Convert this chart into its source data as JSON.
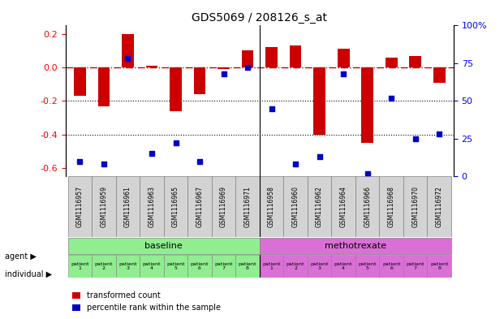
{
  "title": "GDS5069 / 208126_s_at",
  "samples": [
    "GSM1116957",
    "GSM1116959",
    "GSM1116961",
    "GSM1116963",
    "GSM1116965",
    "GSM1116967",
    "GSM1116969",
    "GSM1116971",
    "GSM1116958",
    "GSM1116960",
    "GSM1116962",
    "GSM1116964",
    "GSM1116966",
    "GSM1116968",
    "GSM1116970",
    "GSM1116972"
  ],
  "bar_values": [
    -0.17,
    -0.23,
    0.2,
    0.01,
    -0.26,
    -0.16,
    -0.01,
    0.1,
    0.12,
    0.13,
    -0.4,
    0.11,
    -0.45,
    0.06,
    0.07,
    -0.09
  ],
  "dot_values": [
    10,
    8,
    78,
    15,
    22,
    10,
    68,
    72,
    45,
    8,
    13,
    68,
    2,
    52,
    25,
    28
  ],
  "ylim_left": [
    -0.65,
    0.25
  ],
  "ylim_right": [
    0,
    100
  ],
  "yticks_left": [
    -0.6,
    -0.4,
    -0.2,
    0.0,
    0.2
  ],
  "yticks_right": [
    0,
    25,
    50,
    75,
    100
  ],
  "bar_color": "#CC0000",
  "dot_color": "#0000CC",
  "hline_y": 0.0,
  "hline_color": "#CC0000",
  "dotted_lines": [
    -0.2,
    -0.4
  ],
  "baseline_label": "baseline",
  "methotrexate_label": "methotrexate",
  "baseline_color": "#90EE90",
  "methotrexate_color": "#DA70D6",
  "individual_color": "#DDA0DD",
  "agent_label": "agent",
  "individual_label": "individual",
  "patient_labels": [
    "patient\n1",
    "patient\n2",
    "patient\n3",
    "patient\n4",
    "patient\n5",
    "patient\n6",
    "patient\n7",
    "patient\n8",
    "patient\n1",
    "patient\n2",
    "patient\n3",
    "patient\n4",
    "patient\n5",
    "patient\n6",
    "patient\n7",
    "patient\n8"
  ],
  "legend_bar": "transformed count",
  "legend_dot": "percentile rank within the sample",
  "bg_color": "#FFFFFF",
  "grid_color": "#CCCCCC",
  "n_baseline": 8,
  "n_methotrexate": 8
}
